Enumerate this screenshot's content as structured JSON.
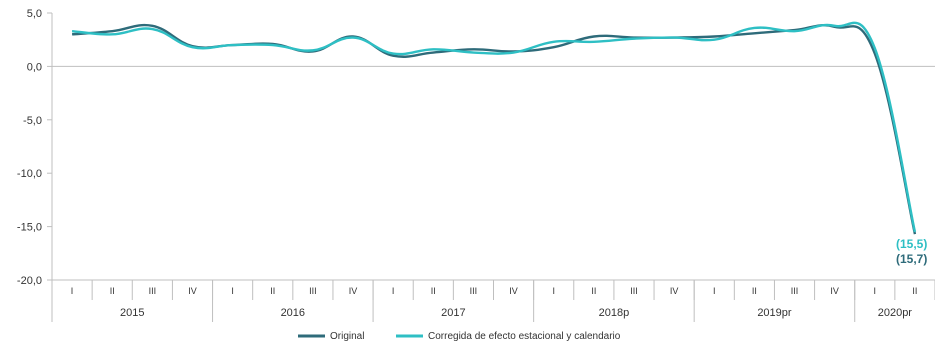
{
  "chart_data": {
    "type": "line",
    "title": "",
    "xlabel": "",
    "ylabel": "",
    "ylim": [
      -20,
      5
    ],
    "yticks": [
      "5,0",
      "0,0",
      "-5,0",
      "-10,0",
      "-15,0",
      "-20,0"
    ],
    "ytick_values": [
      5,
      0,
      -5,
      -10,
      -15,
      -20
    ],
    "grid": false,
    "legend_position": "bottom",
    "quarters": [
      "I",
      "II",
      "III",
      "IV",
      "I",
      "II",
      "III",
      "IV",
      "I",
      "II",
      "III",
      "IV",
      "I",
      "II",
      "III",
      "IV",
      "I",
      "II",
      "III",
      "IV",
      "I",
      "II"
    ],
    "years": [
      {
        "label": "2015",
        "quarters": 4
      },
      {
        "label": "2016",
        "quarters": 4
      },
      {
        "label": "2017",
        "quarters": 4
      },
      {
        "label": "2018p",
        "quarters": 4
      },
      {
        "label": "2019pr",
        "quarters": 4
      },
      {
        "label": "2020pr",
        "quarters": 2
      }
    ],
    "series": [
      {
        "name": "Original",
        "color": "#2e6b7a",
        "values": [
          3.0,
          3.3,
          3.8,
          1.9,
          2.0,
          2.1,
          1.4,
          2.8,
          1.0,
          1.3,
          1.6,
          1.4,
          1.8,
          2.8,
          2.7,
          2.7,
          2.8,
          3.1,
          3.4,
          3.7,
          1.2,
          -15.7
        ]
      },
      {
        "name": "Corregida de efecto estacional y calendario",
        "color": "#2ebfc4",
        "values": [
          3.3,
          3.0,
          3.5,
          1.8,
          2.0,
          2.0,
          1.5,
          2.7,
          1.2,
          1.6,
          1.3,
          1.3,
          2.3,
          2.3,
          2.6,
          2.7,
          2.5,
          3.6,
          3.3,
          3.8,
          1.7,
          -15.5
        ]
      }
    ],
    "annotations": [
      {
        "text": "(15,5)",
        "color": "#2ebfc4"
      },
      {
        "text": "(15,7)",
        "color": "#2e6b7a"
      }
    ]
  }
}
